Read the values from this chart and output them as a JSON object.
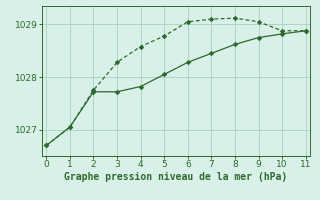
{
  "line1_x": [
    0,
    1,
    2,
    3,
    4,
    5,
    6,
    7,
    8,
    9,
    10,
    11
  ],
  "line1_y": [
    1026.7,
    1027.05,
    1027.75,
    1028.28,
    1028.58,
    1028.78,
    1029.05,
    1029.1,
    1029.12,
    1029.05,
    1028.88,
    1028.88
  ],
  "line2_x": [
    0,
    1,
    2,
    3,
    4,
    5,
    6,
    7,
    8,
    9,
    10,
    11
  ],
  "line2_y": [
    1026.7,
    1027.05,
    1027.72,
    1027.72,
    1027.82,
    1028.05,
    1028.28,
    1028.45,
    1028.62,
    1028.75,
    1028.82,
    1028.88
  ],
  "line_color": "#2d6a2d",
  "bg_color": "#d8f0e8",
  "grid_color": "#afd4c4",
  "xlabel": "Graphe pression niveau de la mer (hPa)",
  "yticks": [
    1027,
    1028,
    1029
  ],
  "xlim": [
    -0.2,
    11.2
  ],
  "ylim": [
    1026.5,
    1029.35
  ]
}
